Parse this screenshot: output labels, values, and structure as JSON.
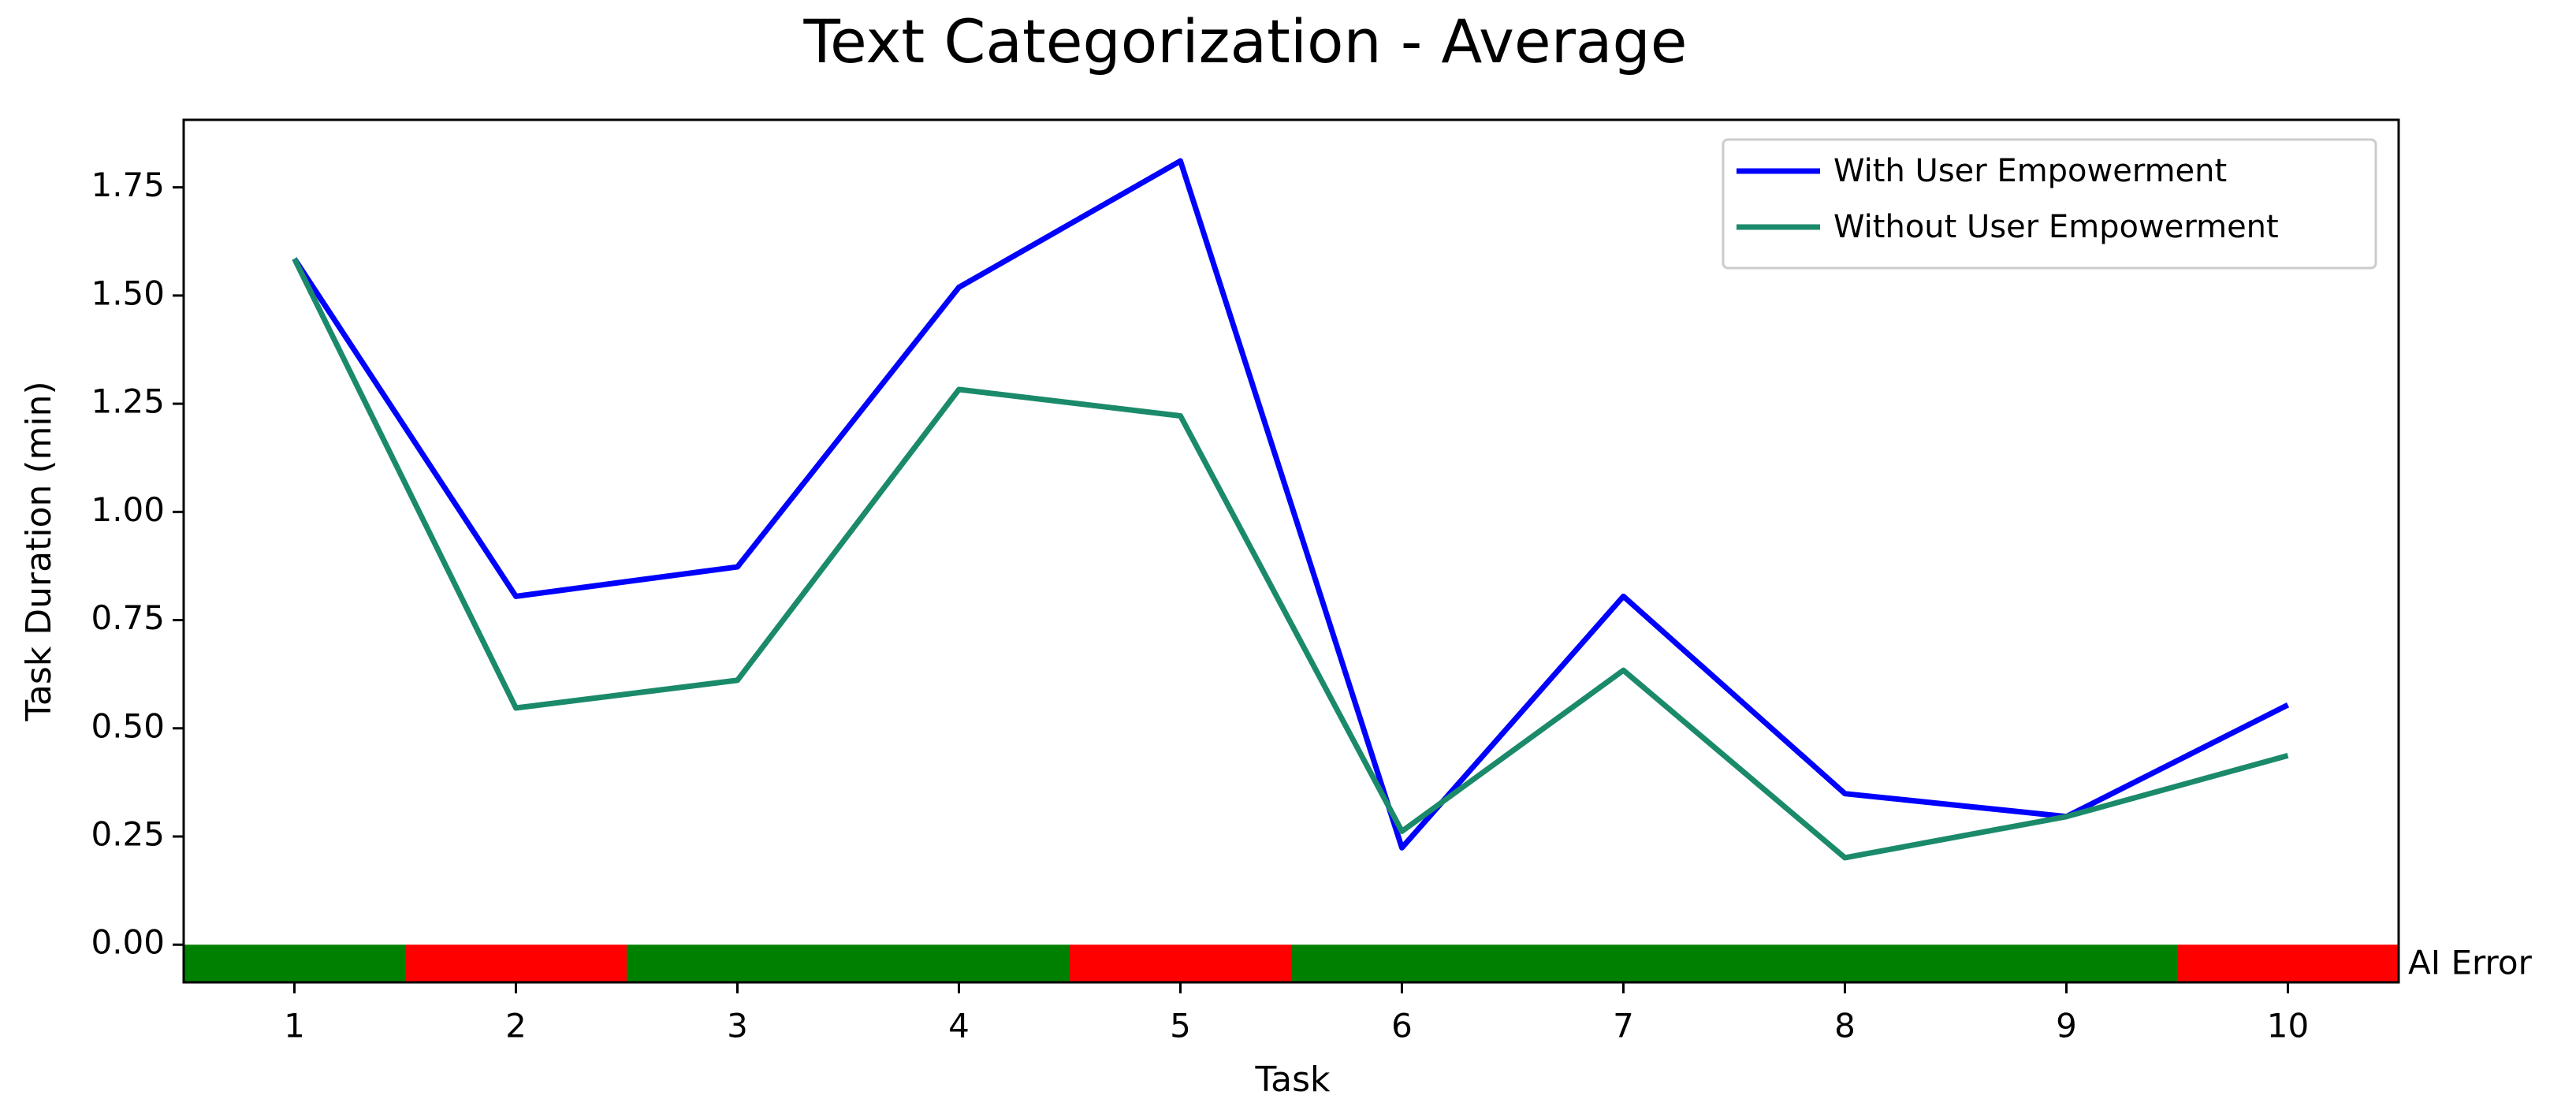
{
  "chart_data": {
    "type": "line",
    "title": "Text Categorization - Average",
    "x_label": "Task",
    "y_label": "Task Duration (min)",
    "x": [
      1,
      2,
      3,
      4,
      5,
      6,
      7,
      8,
      9,
      10
    ],
    "series": [
      {
        "name": "With User Empowerment",
        "color": "#0000ff",
        "values": [
          1.585,
          0.805,
          0.873,
          1.519,
          1.811,
          0.224,
          0.805,
          0.349,
          0.296,
          0.554
        ]
      },
      {
        "name": "Without User Empowerment",
        "color": "#1a8a6a",
        "values": [
          1.585,
          0.547,
          0.611,
          1.283,
          1.222,
          0.262,
          0.634,
          0.201,
          0.296,
          0.437
        ]
      }
    ],
    "ai_error": {
      "label": "AI Error",
      "values": [
        false,
        true,
        false,
        false,
        true,
        false,
        false,
        false,
        false,
        true
      ],
      "error_color": "#ff0000",
      "ok_color": "#008000"
    },
    "xlim": [
      0.5,
      10.5
    ],
    "xticks": [
      1,
      2,
      3,
      4,
      5,
      6,
      7,
      8,
      9,
      10
    ],
    "ylim": [
      -0.087,
      1.906
    ],
    "yticks": [
      {
        "value": 0,
        "label": "0.00"
      },
      {
        "value": 0.25,
        "label": "0.25"
      },
      {
        "value": 0.5,
        "label": "0.50"
      },
      {
        "value": 0.75,
        "label": "0.75"
      },
      {
        "value": 1,
        "label": "1.00"
      },
      {
        "value": 1.25,
        "label": "1.25"
      },
      {
        "value": 1.5,
        "label": "1.50"
      },
      {
        "value": 1.75,
        "label": "1.75"
      }
    ],
    "legend": "upper right",
    "grid": false
  }
}
